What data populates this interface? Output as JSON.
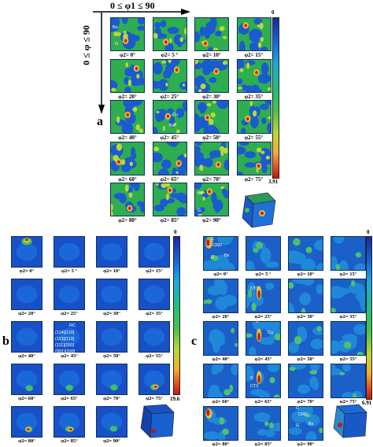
{
  "header": {
    "phi1_range": "0 ≤ φ1 ≤ 90",
    "phi_range": "0 ≤ φ ≤ 90"
  },
  "panels": [
    {
      "id": "a",
      "letter": "a",
      "scale_max": "3.91",
      "scale_min": "0",
      "labels": [
        "φ2= 0°",
        "φ2= 5 °",
        "φ2= 10°",
        "φ2= 15°",
        "φ2= 20°",
        "φ2= 25°",
        "φ2= 30°",
        "φ2= 35°",
        "φ2= 40°",
        "φ2= 45°",
        "φ2= 50°",
        "φ2= 55°",
        "φ2= 60°",
        "φ2= 65°",
        "φ2= 70°",
        "φ2= 75°",
        "φ2= 80°",
        "φ2= 85°",
        "φ2= 90°"
      ],
      "annotations": [
        "Bs",
        "G",
        "Cu",
        "Bs",
        "Bs",
        "G"
      ]
    },
    {
      "id": "b",
      "letter": "b",
      "scale_max": "19.6",
      "scale_min": "0",
      "labels": [
        "φ2= 0°",
        "φ2= 5 °",
        "φ2= 10°",
        "φ2= 15°",
        "φ2= 20°",
        "φ2= 25°",
        "φ2= 30°",
        "φ2= 35°",
        "φ2= 40°",
        "φ2= 45°",
        "φ2= 50°",
        "φ2= 55°",
        "φ2= 60°",
        "φ2= 65°",
        "φ2= 70°",
        "φ2= 75°",
        "φ2= 80°",
        "φ2= 85°",
        "φ2= 90°"
      ],
      "annotations": [
        "RC",
        "(114)[110]",
        "(113)[110]",
        "(111)[110]",
        "(001)[100]"
      ]
    },
    {
      "id": "c",
      "letter": "c",
      "scale_max": "6.91",
      "scale_min": "0",
      "labels": [
        "φ2= 0°",
        "φ2= 5 °",
        "φ2= 10°",
        "φ2= 15°",
        "φ2= 20°",
        "φ2= 25°",
        "φ2= 30°",
        "φ2= 35°",
        "φ2= 40°",
        "φ2= 45°",
        "φ2= 50°",
        "φ2= 55°",
        "φ2= 60°",
        "φ2= 65°",
        "φ2= 70°",
        "φ2= 75°",
        "φ2= 80°",
        "φ2= 85°",
        "φ2= 90°"
      ],
      "annotations": [
        "C",
        "CRD",
        "G",
        "Bs",
        "CT1",
        "C",
        "Cu",
        "S",
        "CT1",
        "C",
        "CRD",
        "G",
        "Bs"
      ]
    }
  ],
  "colors": {
    "background": "#1560d0",
    "low": "#1a2a9a",
    "mid": "#30c060",
    "high": "#c01818"
  }
}
